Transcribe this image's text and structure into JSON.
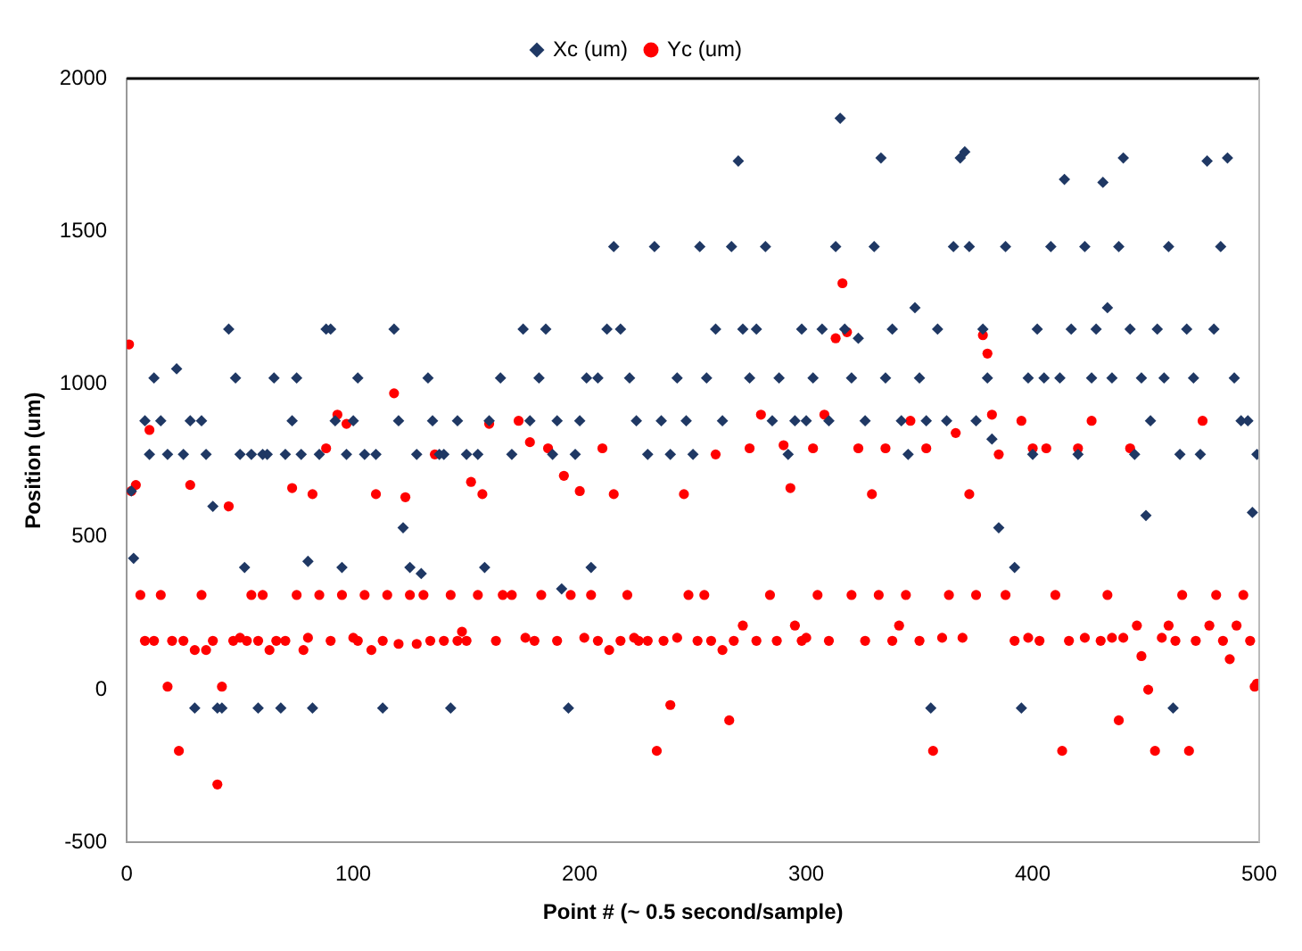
{
  "chart_data": {
    "type": "scatter",
    "xlabel": "Point # (~ 0.5 second/sample)",
    "ylabel": "Position (um)",
    "xlim": [
      0,
      500
    ],
    "xticks": [
      0,
      100,
      200,
      300,
      400,
      500
    ],
    "ylim": [
      -500,
      2000
    ],
    "yticks": [
      -500,
      0,
      500,
      1000,
      1500,
      2000
    ],
    "grid": false,
    "legend": "top",
    "series": [
      {
        "name": "Xc (um)",
        "color": "#1f3864",
        "marker": "diamond",
        "x": [
          2,
          3,
          8,
          10,
          12,
          15,
          18,
          22,
          25,
          28,
          30,
          33,
          35,
          38,
          40,
          42,
          45,
          48,
          50,
          52,
          55,
          58,
          60,
          62,
          65,
          68,
          70,
          73,
          75,
          77,
          80,
          82,
          85,
          88,
          90,
          92,
          95,
          97,
          100,
          102,
          105,
          110,
          113,
          118,
          120,
          122,
          125,
          128,
          130,
          133,
          135,
          138,
          140,
          143,
          146,
          150,
          155,
          158,
          160,
          165,
          170,
          175,
          178,
          182,
          185,
          188,
          190,
          192,
          195,
          198,
          200,
          203,
          205,
          208,
          212,
          215,
          218,
          222,
          225,
          230,
          233,
          236,
          240,
          243,
          247,
          250,
          253,
          256,
          260,
          263,
          267,
          270,
          272,
          275,
          278,
          282,
          285,
          288,
          292,
          295,
          298,
          300,
          303,
          307,
          310,
          313,
          315,
          317,
          320,
          323,
          326,
          330,
          333,
          335,
          338,
          342,
          345,
          348,
          350,
          353,
          355,
          358,
          362,
          365,
          368,
          370,
          372,
          375,
          378,
          380,
          382,
          385,
          388,
          392,
          395,
          398,
          400,
          402,
          405,
          408,
          412,
          414,
          417,
          420,
          423,
          426,
          428,
          431,
          433,
          435,
          438,
          440,
          443,
          445,
          448,
          450,
          452,
          455,
          458,
          460,
          462,
          465,
          468,
          471,
          474,
          477,
          480,
          483,
          486,
          489,
          492,
          495,
          497,
          499
        ],
        "values": [
          650,
          430,
          880,
          770,
          1020,
          880,
          770,
          1050,
          770,
          880,
          -60,
          880,
          770,
          600,
          -60,
          -60,
          1180,
          1020,
          770,
          400,
          770,
          -60,
          770,
          770,
          1020,
          -60,
          770,
          880,
          1020,
          770,
          420,
          -60,
          770,
          1180,
          1180,
          880,
          400,
          770,
          880,
          1020,
          770,
          770,
          -60,
          1180,
          880,
          530,
          400,
          770,
          380,
          1020,
          880,
          770,
          770,
          -60,
          880,
          770,
          770,
          400,
          880,
          1020,
          770,
          1180,
          880,
          1020,
          1180,
          770,
          880,
          330,
          -60,
          770,
          880,
          1020,
          400,
          1020,
          1180,
          1450,
          1180,
          1020,
          880,
          770,
          1450,
          880,
          770,
          1020,
          880,
          770,
          1450,
          1020,
          1180,
          880,
          1450,
          1730,
          1180,
          1020,
          1180,
          1450,
          880,
          1020,
          770,
          880,
          1180,
          880,
          1020,
          1180,
          880,
          1450,
          1870,
          1180,
          1020,
          1150,
          880,
          1450,
          1740,
          1020,
          1180,
          880,
          770,
          1250,
          1020,
          880,
          -60,
          1180,
          880,
          1450,
          1740,
          1760,
          1450,
          880,
          1180,
          1020,
          820,
          530,
          1450,
          400,
          -60,
          1020,
          770,
          1180,
          1020,
          1450,
          1020,
          1670,
          1180,
          770,
          1450,
          1020,
          1180,
          1660,
          1250,
          1020,
          1450,
          1740,
          1180,
          770,
          1020,
          570,
          880,
          1180,
          1020,
          1450,
          -60,
          770,
          1180,
          1020,
          770,
          1730,
          1180,
          1450,
          1740,
          1020,
          880,
          880,
          580,
          770
        ]
      },
      {
        "name": "Yc (um)",
        "color": "#ff0000",
        "marker": "circle",
        "x": [
          1,
          2,
          4,
          6,
          8,
          10,
          12,
          15,
          18,
          20,
          23,
          25,
          28,
          30,
          33,
          35,
          38,
          40,
          42,
          45,
          47,
          50,
          53,
          55,
          58,
          60,
          63,
          66,
          70,
          73,
          75,
          78,
          80,
          82,
          85,
          88,
          90,
          93,
          95,
          97,
          100,
          102,
          105,
          108,
          110,
          113,
          115,
          118,
          120,
          123,
          125,
          128,
          131,
          134,
          136,
          140,
          143,
          146,
          148,
          150,
          152,
          155,
          157,
          160,
          163,
          166,
          170,
          173,
          176,
          178,
          180,
          183,
          186,
          190,
          193,
          196,
          200,
          202,
          205,
          208,
          210,
          213,
          215,
          218,
          221,
          224,
          226,
          230,
          234,
          237,
          240,
          243,
          246,
          248,
          252,
          255,
          258,
          260,
          263,
          266,
          268,
          272,
          275,
          278,
          280,
          284,
          287,
          290,
          293,
          295,
          298,
          300,
          303,
          305,
          308,
          310,
          313,
          316,
          318,
          320,
          323,
          326,
          329,
          332,
          335,
          338,
          341,
          344,
          346,
          350,
          353,
          356,
          360,
          363,
          366,
          369,
          372,
          375,
          378,
          380,
          382,
          385,
          388,
          392,
          395,
          398,
          400,
          403,
          406,
          410,
          413,
          416,
          420,
          423,
          426,
          430,
          433,
          435,
          438,
          440,
          443,
          446,
          448,
          451,
          454,
          457,
          460,
          463,
          466,
          469,
          472,
          475,
          478,
          481,
          484,
          487,
          490,
          493,
          496,
          498,
          499
        ],
        "values": [
          1130,
          650,
          670,
          310,
          160,
          850,
          160,
          310,
          10,
          160,
          -200,
          160,
          670,
          130,
          310,
          130,
          160,
          -310,
          10,
          600,
          160,
          170,
          160,
          310,
          160,
          310,
          130,
          160,
          160,
          660,
          310,
          130,
          170,
          640,
          310,
          790,
          160,
          900,
          310,
          870,
          170,
          160,
          310,
          130,
          640,
          160,
          310,
          970,
          150,
          630,
          310,
          150,
          310,
          160,
          770,
          160,
          310,
          160,
          190,
          160,
          680,
          310,
          640,
          870,
          160,
          310,
          310,
          880,
          170,
          810,
          160,
          310,
          790,
          160,
          700,
          310,
          650,
          170,
          310,
          160,
          790,
          130,
          640,
          160,
          310,
          170,
          160,
          160,
          -200,
          160,
          -50,
          170,
          640,
          310,
          160,
          310,
          160,
          770,
          130,
          -100,
          160,
          210,
          790,
          160,
          900,
          310,
          160,
          800,
          660,
          210,
          160,
          170,
          790,
          310,
          900,
          160,
          1150,
          1330,
          1170,
          310,
          790,
          160,
          640,
          310,
          790,
          160,
          210,
          310,
          880,
          160,
          790,
          -200,
          170,
          310,
          840,
          170,
          640,
          310,
          1160,
          1100,
          900,
          770,
          310,
          160,
          880,
          170,
          790,
          160,
          790,
          310,
          -200,
          160,
          790,
          170,
          880,
          160,
          310,
          170,
          -100,
          170,
          790,
          210,
          110,
          0,
          -200,
          170,
          210,
          160,
          310,
          -200,
          160,
          880,
          210,
          310,
          160,
          100,
          210,
          310,
          160,
          10,
          20
        ]
      }
    ]
  }
}
